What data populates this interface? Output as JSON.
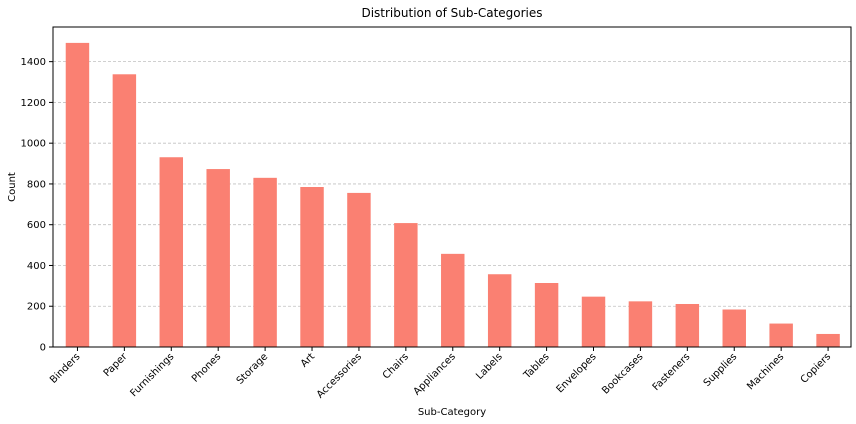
{
  "chart_data": {
    "type": "bar",
    "title": "Distribution of Sub-Categories",
    "xlabel": "Sub-Category",
    "ylabel": "Count",
    "categories": [
      "Binders",
      "Paper",
      "Furnishings",
      "Phones",
      "Storage",
      "Art",
      "Accessories",
      "Chairs",
      "Appliances",
      "Labels",
      "Tables",
      "Envelopes",
      "Bookcases",
      "Fasteners",
      "Supplies",
      "Machines",
      "Copiers"
    ],
    "values": [
      1492,
      1338,
      931,
      873,
      830,
      785,
      756,
      608,
      457,
      357,
      314,
      247,
      224,
      211,
      184,
      115,
      64
    ],
    "yticks": [
      0,
      200,
      400,
      600,
      800,
      1000,
      1200,
      1400
    ],
    "ylim": [
      0,
      1570
    ],
    "grid": "horizontal dashed",
    "bar_color": "#fa8072",
    "grid_color": "#c0c0c0"
  }
}
